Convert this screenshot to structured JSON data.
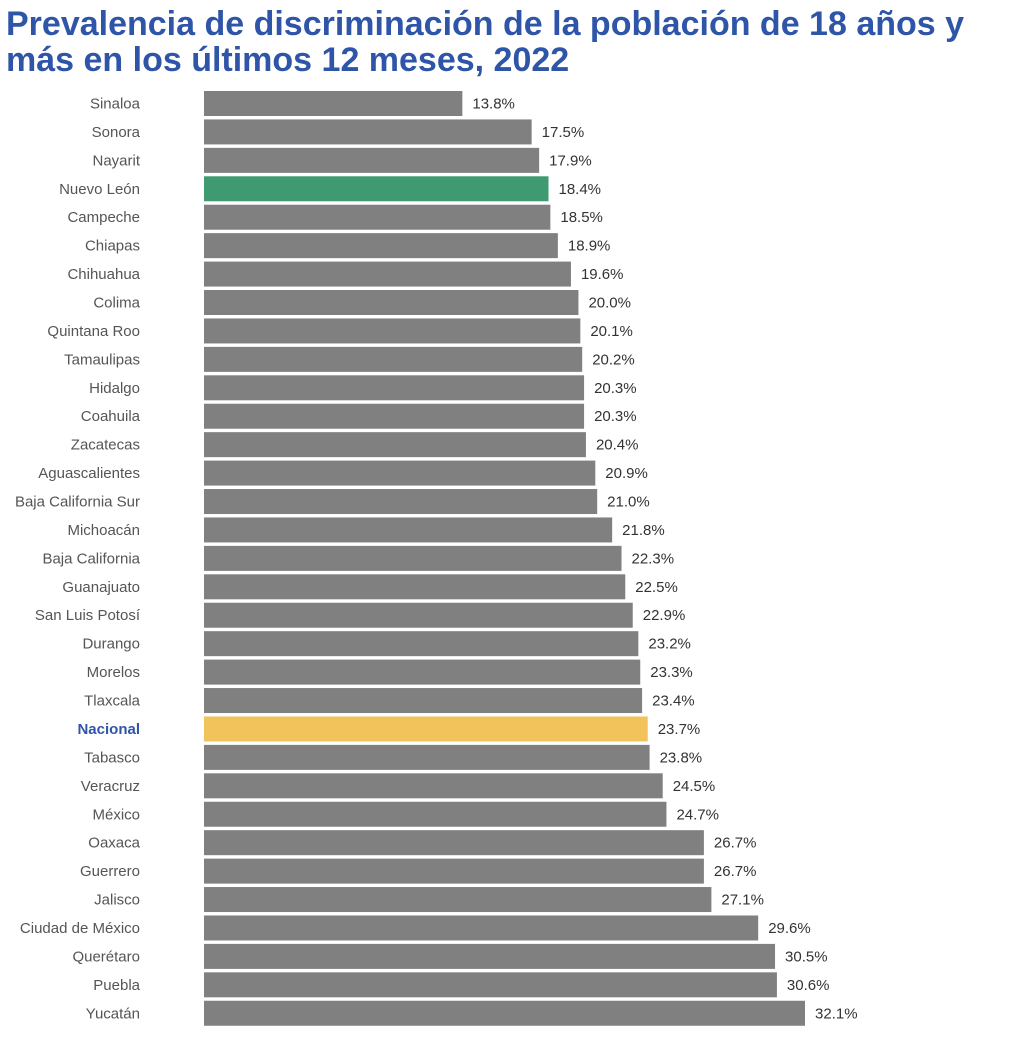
{
  "title_lines": [
    "Prevalencia de discriminación de la población de 18 años y",
    "más en los últimos 12 meses, 2022"
  ],
  "chart_data": {
    "type": "bar",
    "orientation": "horizontal",
    "title": "Prevalencia de discriminación de la población de 18 años y más en los últimos 12 meses, 2022",
    "categories": [
      "Sinaloa",
      "Sonora",
      "Nayarit",
      "Nuevo León",
      "Campeche",
      "Chiapas",
      "Chihuahua",
      "Colima",
      "Quintana Roo",
      "Tamaulipas",
      "Hidalgo",
      "Coahuila",
      "Zacatecas",
      "Aguascalientes",
      "Baja California Sur",
      "Michoacán",
      "Baja California",
      "Guanajuato",
      "San Luis Potosí",
      "Durango",
      "Morelos",
      "Tlaxcala",
      "Nacional",
      "Tabasco",
      "Veracruz",
      "México",
      "Oaxaca",
      "Guerrero",
      "Jalisco",
      "Ciudad de México",
      "Querétaro",
      "Puebla",
      "Yucatán"
    ],
    "values": [
      13.8,
      17.5,
      17.9,
      18.4,
      18.5,
      18.9,
      19.6,
      20.0,
      20.1,
      20.2,
      20.3,
      20.3,
      20.4,
      20.9,
      21.0,
      21.8,
      22.3,
      22.5,
      22.9,
      23.2,
      23.3,
      23.4,
      23.7,
      23.8,
      24.5,
      24.7,
      26.7,
      26.7,
      27.1,
      29.6,
      30.5,
      30.6,
      32.1
    ],
    "labels": [
      "13.8%",
      "17.5%",
      "17.9%",
      "18.4%",
      "18.5%",
      "18.9%",
      "19.6%",
      "20.0%",
      "20.1%",
      "20.2%",
      "20.3%",
      "20.3%",
      "20.4%",
      "20.9%",
      "21.0%",
      "21.8%",
      "22.3%",
      "22.5%",
      "22.9%",
      "23.2%",
      "23.3%",
      "23.4%",
      "23.7%",
      "23.8%",
      "24.5%",
      "24.7%",
      "26.7%",
      "26.7%",
      "27.1%",
      "29.6%",
      "30.5%",
      "30.6%",
      "32.1%"
    ],
    "unit": "%",
    "xlim": [
      0,
      32.1
    ],
    "grid": false,
    "colors": {
      "default": "#808080",
      "Nuevo León": "#3f9a72",
      "Nacional": "#f2c35a",
      "highlight_label": "#2e55a8"
    },
    "highlight_label": "Nacional"
  }
}
